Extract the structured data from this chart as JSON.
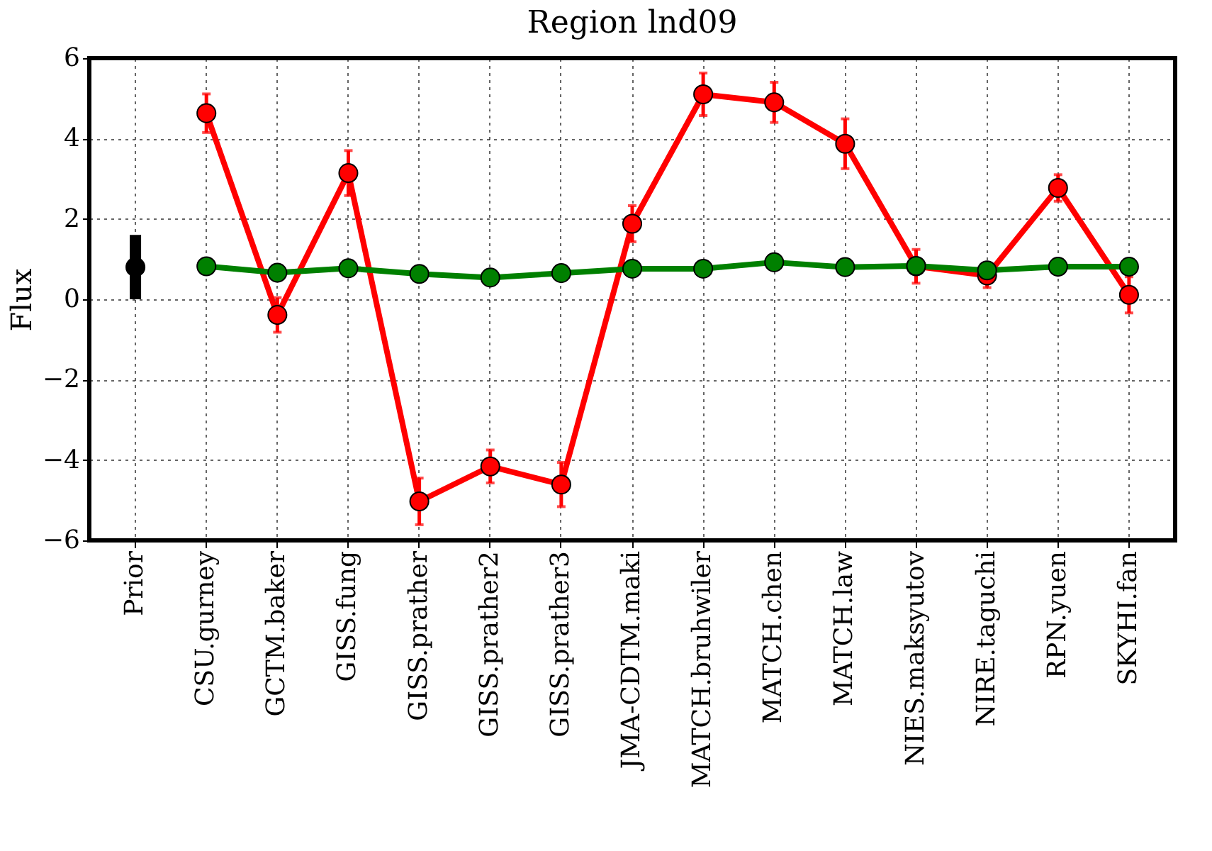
{
  "chart_data": {
    "type": "line",
    "title": "Region lnd09",
    "ylabel": "Flux",
    "categories": [
      "Prior",
      "CSU.gurney",
      "GCTM.baker",
      "GISS.fung",
      "GISS.prather",
      "GISS.prather2",
      "GISS.prather3",
      "JMA-CDTM.maki",
      "MATCH.bruhwiler",
      "MATCH.chen",
      "MATCH.law",
      "NIES.maksyutov",
      "NIRE.taguchi",
      "RPN.yuen",
      "SKYHI.fan"
    ],
    "series": [
      {
        "color": "#ff0000",
        "values": [
          null,
          4.63,
          -0.39,
          3.14,
          -5.03,
          -4.16,
          -4.61,
          1.88,
          5.1,
          4.9,
          3.87,
          0.82,
          0.59,
          2.77,
          0.11
        ],
        "errors": [
          null,
          0.48,
          0.43,
          0.56,
          0.58,
          0.41,
          0.55,
          0.45,
          0.53,
          0.5,
          0.62,
          0.42,
          0.3,
          0.33,
          0.45
        ]
      },
      {
        "color": "#008000",
        "values": [
          null,
          0.82,
          0.66,
          0.77,
          0.63,
          0.54,
          0.65,
          0.76,
          0.76,
          0.92,
          0.8,
          0.83,
          0.72,
          0.81,
          0.81
        ]
      },
      {
        "type": "scatter",
        "color": "#000000",
        "values": [
          0.8,
          null,
          null,
          null,
          null,
          null,
          null,
          null,
          null,
          null,
          null,
          null,
          null,
          null,
          null
        ],
        "errors": [
          0.8,
          null,
          null,
          null,
          null,
          null,
          null,
          null,
          null,
          null,
          null,
          null,
          null,
          null,
          null
        ]
      }
    ],
    "ylim": [
      -6,
      6
    ],
    "yticks": [
      -6,
      -4,
      -2,
      0,
      2,
      4,
      6
    ],
    "grid": true,
    "marker": "circle",
    "line_style": "solid"
  }
}
